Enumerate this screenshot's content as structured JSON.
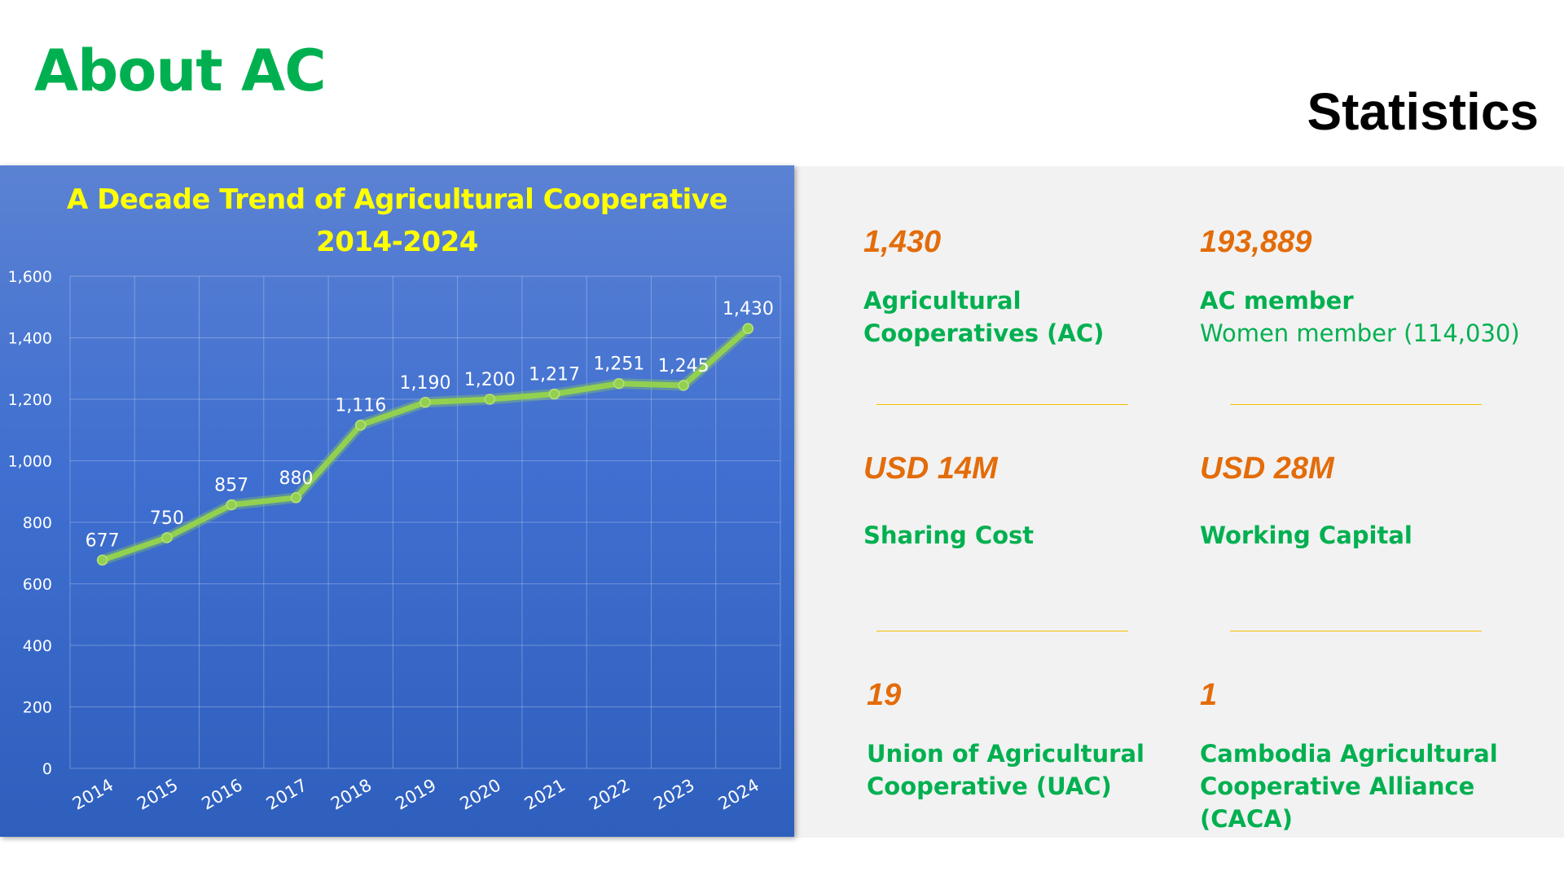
{
  "slide": {
    "title": "About AC",
    "section_title": "Statistics"
  },
  "chart_data": {
    "type": "line",
    "title_line1": "A Decade Trend of Agricultural Cooperative",
    "title_line2": "2014-2024",
    "categories": [
      "2014",
      "2015",
      "2016",
      "2017",
      "2018",
      "2019",
      "2020",
      "2021",
      "2022",
      "2023",
      "2024"
    ],
    "values": [
      677,
      750,
      857,
      880,
      1116,
      1190,
      1200,
      1217,
      1251,
      1245,
      1430
    ],
    "data_labels": [
      "677",
      "750",
      "857",
      "880",
      "1,116",
      "1,190",
      "1,200",
      "1,217",
      "1,251",
      "1,245",
      "1,430"
    ],
    "y_ticks": [
      0,
      200,
      400,
      600,
      800,
      1000,
      1200,
      1400,
      1600
    ],
    "y_tick_labels": [
      "0",
      "200",
      "400",
      "600",
      "800",
      "1,000",
      "1,200",
      "1,400",
      "1,600"
    ],
    "ylim": [
      0,
      1600
    ],
    "grid": true,
    "colors": {
      "line": "#92D050",
      "title": "#FFFF00",
      "labels": "#FFFFFF"
    }
  },
  "stats": [
    {
      "value": "1,430",
      "label_line1": "Agricultural",
      "label_line2": "Cooperatives (AC)",
      "sub": ""
    },
    {
      "value": "193,889",
      "label_line1": "AC member",
      "label_line2": "",
      "sub": "Women member (114,030)"
    },
    {
      "value": "USD 14M",
      "label_line1": "Sharing Cost",
      "label_line2": "",
      "sub": ""
    },
    {
      "value": "USD 28M",
      "label_line1": "Working Capital",
      "label_line2": "",
      "sub": ""
    },
    {
      "value": "19",
      "label_line1": "Union of Agricultural",
      "label_line2": "Cooperative (UAC)",
      "sub": ""
    },
    {
      "value": "1",
      "label_line1": "Cambodia Agricultural",
      "label_line2": "Cooperative Alliance (CACA)",
      "sub": ""
    }
  ],
  "colors": {
    "title_green": "#00B050",
    "value_orange": "#E36C0A",
    "divider": "#F5C000",
    "stats_bg": "#F2F2F2"
  }
}
